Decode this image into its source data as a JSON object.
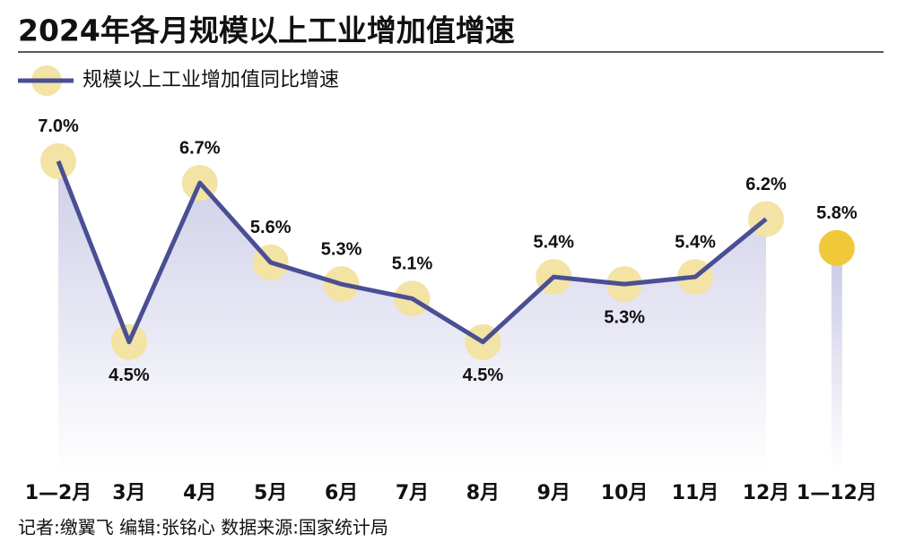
{
  "chart_data": {
    "type": "line",
    "title": "2024年各月规模以上工业增加值增速",
    "categories": [
      "1—2月",
      "3月",
      "4月",
      "5月",
      "6月",
      "7月",
      "8月",
      "9月",
      "10月",
      "11月",
      "12月",
      "1—12月"
    ],
    "series": [
      {
        "name": "规模以上工业增加值同比增速",
        "color": "#4a4f94",
        "values": [
          7.0,
          4.5,
          6.7,
          5.6,
          5.3,
          5.1,
          4.5,
          5.4,
          5.3,
          5.4,
          6.2,
          null
        ],
        "value_labels": [
          "7.0%",
          "4.5%",
          "6.7%",
          "5.6%",
          "5.3%",
          "5.1%",
          "4.5%",
          "5.4%",
          "5.3%",
          "5.4%",
          "6.2%",
          null
        ]
      },
      {
        "color": "#f0c93a",
        "values": [
          null,
          null,
          null,
          null,
          null,
          null,
          null,
          null,
          null,
          null,
          null,
          5.8
        ],
        "value_labels": [
          null,
          null,
          null,
          null,
          null,
          null,
          null,
          null,
          null,
          null,
          null,
          "5.8%"
        ]
      }
    ],
    "ylim": [
      2.7,
      7.6
    ],
    "credits": "记者:缴翼飞 编辑:张铭心 数据来源:国家统计局"
  }
}
